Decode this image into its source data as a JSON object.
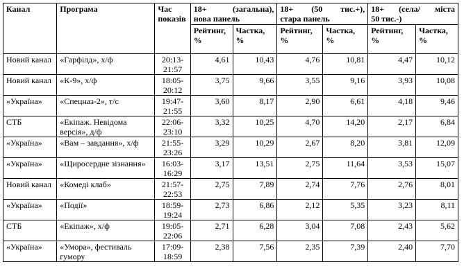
{
  "headers": {
    "channel": "Канал",
    "program": "Програма",
    "time": "Час показів",
    "groups": [
      {
        "line1": "18+ (загальна),",
        "line2": "нова панель"
      },
      {
        "line1": "18+ (50 тис.+),",
        "line2": "стара панель"
      },
      {
        "line1": "18+ (села/ міста",
        "line2": "50 тис.-)"
      }
    ],
    "rating": "Рейтинг, %",
    "share": "Частка, %"
  },
  "rows": [
    {
      "channel": "Новий канал",
      "program": "«Гарфілд», х/ф",
      "time": "20:13-21:57",
      "r1": "4,61",
      "s1": "10,43",
      "r2": "4,76",
      "s2": "10,81",
      "r3": "4,47",
      "s3": "10,12"
    },
    {
      "channel": "Новий канал",
      "program": "«К-9», х/ф",
      "time": "18:05-20:12",
      "r1": "3,75",
      "s1": "9,66",
      "r2": "3,55",
      "s2": "9,16",
      "r3": "3,93",
      "s3": "10,08"
    },
    {
      "channel": "«Україна»",
      "program": "«Спецназ-2», т/с",
      "time": "19:47-21:55",
      "r1": "3,60",
      "s1": "8,17",
      "r2": "2,90",
      "s2": "6,61",
      "r3": "4,18",
      "s3": "9,46"
    },
    {
      "channel": "СТБ",
      "program": "«Екіпаж. Невідома версія», д/ф",
      "time": "22:06-23:10",
      "r1": "3,32",
      "s1": "10,25",
      "r2": "4,70",
      "s2": "14,20",
      "r3": "2,17",
      "s3": "6,84"
    },
    {
      "channel": "«Україна»",
      "program": "«Вам – завдання», х/ф",
      "time": "21:55-23:26",
      "r1": "3,29",
      "s1": "10,29",
      "r2": "2,67",
      "s2": "8,20",
      "r3": "3,81",
      "s3": "12,09"
    },
    {
      "channel": "«Україна»",
      "program": "«Щиросердне зізнання»",
      "time": "16:03-16:29",
      "r1": "3,17",
      "s1": "13,51",
      "r2": "2,75",
      "s2": "11,64",
      "r3": "3,53",
      "s3": "15,07"
    },
    {
      "channel": "Новий канал",
      "program": "«Комеді клаб»",
      "time": "21:57-22:53",
      "r1": "2,75",
      "s1": "7,89",
      "r2": "2,74",
      "s2": "7,76",
      "r3": "2,76",
      "s3": "8,01"
    },
    {
      "channel": "«Україна»",
      "program": "«Події»",
      "time": "18:59-19:24",
      "r1": "2,73",
      "s1": "6,86",
      "r2": "2,12",
      "s2": "5,35",
      "r3": "3,23",
      "s3": "8,11"
    },
    {
      "channel": "СТБ",
      "program": "«Екіпаж», х/ф",
      "time": "19:05-22:06",
      "r1": "2,71",
      "s1": "6,28",
      "r2": "3,04",
      "s2": "7,08",
      "r3": "2,43",
      "s3": "5,62"
    },
    {
      "channel": "«Україна»",
      "program": "«Умора», фестиваль гумору",
      "time": "17:09-18:59",
      "r1": "2,38",
      "s1": "7,56",
      "r2": "2,35",
      "s2": "7,39",
      "r3": "2,40",
      "s3": "7,70"
    }
  ]
}
